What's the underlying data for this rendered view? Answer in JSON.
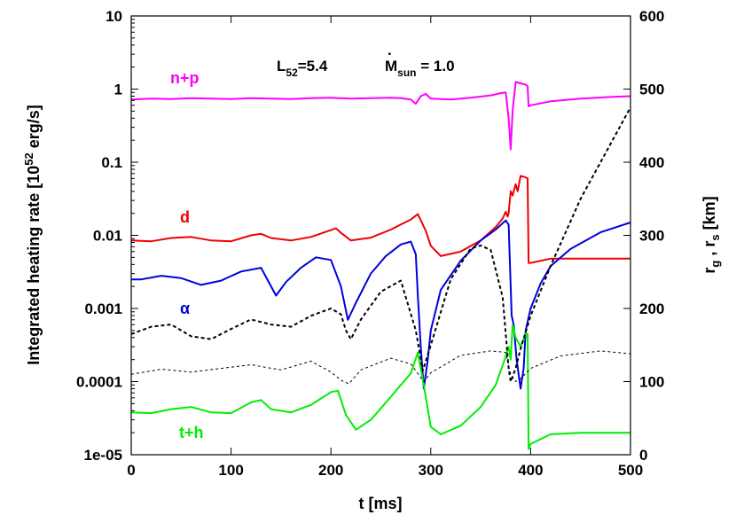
{
  "chart_data": {
    "type": "line",
    "xlabel": "t [ms]",
    "ylabel_left": "Integrated heating rate [10^52 erg/s]",
    "ylabel_right": "r_g , r_s [km]",
    "xlim": [
      0,
      500
    ],
    "ylim_left": [
      1e-05,
      10
    ],
    "ylim_right": [
      0,
      600
    ],
    "yscale_left": "log",
    "yscale_right": "linear",
    "grid": false,
    "x_ticks": [
      "0",
      "100",
      "200",
      "300",
      "400",
      "500"
    ],
    "x_tick_values": [
      0,
      100,
      200,
      300,
      400,
      500
    ],
    "y_ticks_left": [
      "1e-05",
      "0.0001",
      "0.001",
      "0.01",
      "0.1",
      "1",
      "10"
    ],
    "y_tick_values_left": [
      1e-05,
      0.0001,
      0.001,
      0.01,
      0.1,
      1,
      10
    ],
    "y_ticks_right": [
      "0",
      "100",
      "200",
      "300",
      "400",
      "500",
      "600"
    ],
    "y_tick_values_right": [
      0,
      100,
      200,
      300,
      400,
      500,
      600
    ],
    "annotation": {
      "L_main": "L",
      "L_sub": "52",
      "L_val": "=5.4",
      "M_main": "M",
      "M_sub": "sun",
      "M_val": " = 1.0"
    },
    "series": [
      {
        "name": "n+p",
        "color": "#ff00ff",
        "axis": "left",
        "style": "solid",
        "x": [
          0,
          20,
          40,
          60,
          80,
          100,
          120,
          140,
          160,
          180,
          200,
          220,
          240,
          260,
          270,
          280,
          285,
          290,
          295,
          300,
          320,
          340,
          360,
          370,
          375,
          378,
          380,
          382,
          385,
          390,
          395,
          397,
          398,
          400,
          420,
          450,
          480,
          500
        ],
        "y": [
          0.72,
          0.74,
          0.73,
          0.75,
          0.74,
          0.73,
          0.75,
          0.74,
          0.73,
          0.75,
          0.76,
          0.74,
          0.75,
          0.76,
          0.75,
          0.72,
          0.63,
          0.8,
          0.86,
          0.74,
          0.72,
          0.76,
          0.82,
          0.88,
          0.9,
          0.4,
          0.15,
          0.5,
          1.25,
          1.2,
          1.15,
          1.1,
          0.58,
          0.6,
          0.68,
          0.74,
          0.78,
          0.8
        ]
      },
      {
        "name": "d",
        "color": "#ee0000",
        "axis": "left",
        "style": "solid",
        "x": [
          0,
          20,
          40,
          60,
          80,
          100,
          120,
          130,
          140,
          160,
          180,
          200,
          205,
          210,
          220,
          240,
          260,
          280,
          287,
          295,
          300,
          310,
          330,
          350,
          365,
          372,
          375,
          377,
          378,
          380,
          382,
          385,
          387,
          390,
          395,
          397,
          398,
          400,
          420,
          450,
          500
        ],
        "y": [
          0.0085,
          0.0083,
          0.0092,
          0.0095,
          0.0085,
          0.0083,
          0.01,
          0.0105,
          0.0092,
          0.0085,
          0.0095,
          0.0118,
          0.0125,
          0.0108,
          0.0085,
          0.0093,
          0.012,
          0.0165,
          0.0195,
          0.0115,
          0.0072,
          0.0052,
          0.006,
          0.0085,
          0.013,
          0.017,
          0.021,
          0.018,
          0.02,
          0.04,
          0.035,
          0.05,
          0.04,
          0.065,
          0.062,
          0.06,
          0.0042,
          0.0042,
          0.0048,
          0.0048,
          0.0048
        ]
      },
      {
        "name": "α",
        "color": "#0000dd",
        "axis": "left",
        "style": "solid",
        "x": [
          0,
          10,
          30,
          50,
          70,
          90,
          110,
          130,
          145,
          155,
          170,
          185,
          200,
          210,
          217,
          225,
          240,
          255,
          270,
          280,
          285,
          287,
          290,
          293,
          297,
          300,
          310,
          330,
          350,
          365,
          375,
          378,
          381,
          383,
          386,
          390,
          393,
          395,
          400,
          410,
          420,
          440,
          470,
          500
        ],
        "y": [
          0.0025,
          0.0025,
          0.0028,
          0.0026,
          0.0021,
          0.0024,
          0.0032,
          0.0036,
          0.0015,
          0.0023,
          0.0036,
          0.005,
          0.0046,
          0.002,
          0.0007,
          0.0012,
          0.003,
          0.0052,
          0.0075,
          0.0082,
          0.0055,
          0.0015,
          0.0003,
          8e-05,
          0.0002,
          0.0005,
          0.0018,
          0.0045,
          0.0085,
          0.012,
          0.016,
          0.014,
          0.0008,
          0.0006,
          0.0002,
          8e-05,
          0.00015,
          0.0005,
          0.001,
          0.0022,
          0.0038,
          0.0065,
          0.011,
          0.015
        ]
      },
      {
        "name": "t+h",
        "color": "#00ee00",
        "axis": "left",
        "style": "solid",
        "x": [
          0,
          20,
          40,
          60,
          80,
          100,
          120,
          130,
          140,
          160,
          180,
          200,
          207,
          215,
          225,
          240,
          260,
          280,
          287,
          293,
          300,
          310,
          330,
          350,
          365,
          375,
          378,
          380,
          382,
          385,
          390,
          395,
          397,
          398,
          400,
          420,
          450,
          500
        ],
        "y": [
          3.8e-05,
          3.7e-05,
          4.2e-05,
          4.5e-05,
          3.8e-05,
          3.7e-05,
          5.2e-05,
          5.6e-05,
          4.2e-05,
          3.8e-05,
          4.8e-05,
          7.2e-05,
          7.5e-05,
          3.5e-05,
          2.2e-05,
          3e-05,
          6.2e-05,
          0.00013,
          0.00025,
          9e-05,
          2.4e-05,
          1.9e-05,
          2.5e-05,
          4.5e-05,
          9e-05,
          0.00022,
          0.0003,
          0.0002,
          0.0006,
          0.0004,
          0.0003,
          0.00045,
          0.00045,
          1.2e-05,
          1.4e-05,
          1.9e-05,
          2e-05,
          2e-05
        ]
      },
      {
        "name": "",
        "color": "#000000",
        "axis": "right",
        "style": "dashed",
        "x": [
          0,
          20,
          40,
          60,
          80,
          100,
          120,
          140,
          160,
          180,
          200,
          210,
          215,
          220,
          230,
          250,
          270,
          285,
          292,
          300,
          320,
          340,
          350,
          360,
          372,
          378,
          380,
          385,
          390,
          400,
          420,
          450,
          480,
          500
        ],
        "y": [
          165,
          175,
          178,
          162,
          158,
          172,
          185,
          178,
          175,
          190,
          200,
          192,
          170,
          158,
          185,
          223,
          238,
          170,
          115,
          150,
          240,
          282,
          286,
          280,
          215,
          118,
          100,
          118,
          145,
          190,
          258,
          350,
          425,
          475
        ]
      },
      {
        "name": "",
        "color": "#000000",
        "axis": "right",
        "style": "thin-dashed",
        "x": [
          0,
          30,
          60,
          90,
          120,
          150,
          180,
          200,
          210,
          218,
          230,
          260,
          280,
          293,
          300,
          330,
          360,
          375,
          380,
          385,
          390,
          400,
          430,
          470,
          500
        ],
        "y": [
          110,
          117,
          113,
          118,
          123,
          116,
          128,
          113,
          102,
          97,
          116,
          132,
          124,
          100,
          112,
          136,
          142,
          140,
          110,
          100,
          104,
          118,
          135,
          142,
          138
        ]
      }
    ]
  }
}
